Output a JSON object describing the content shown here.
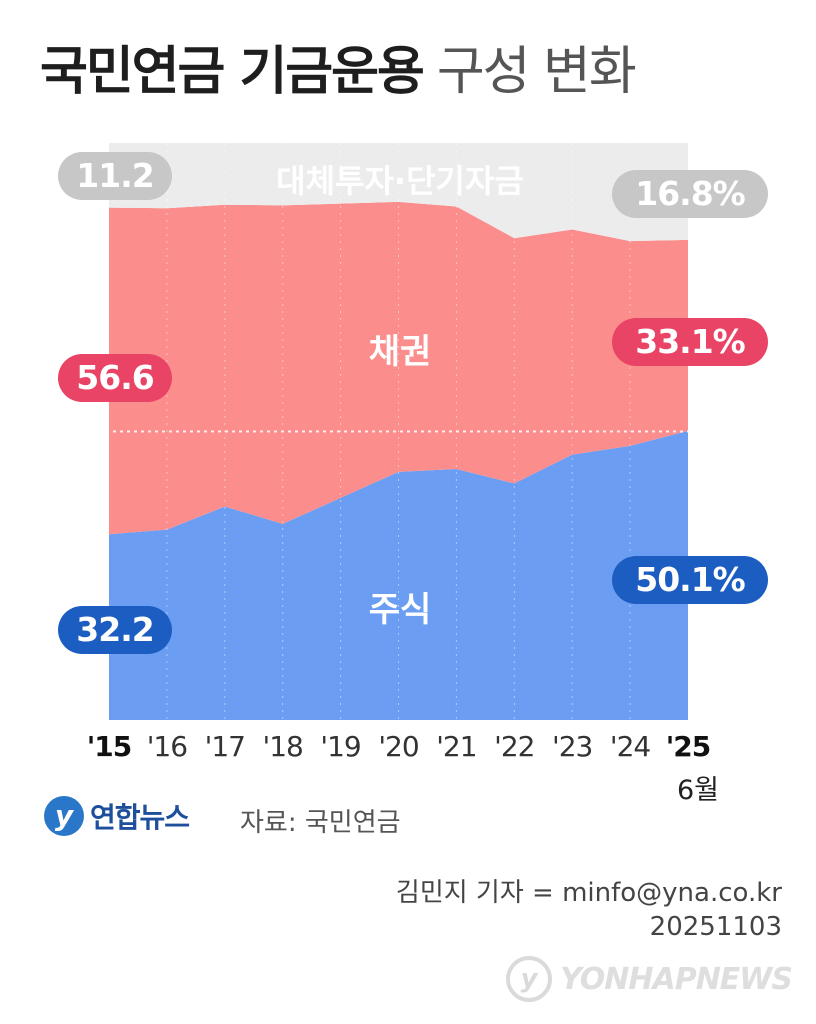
{
  "title_main": "국민연금 기금운용",
  "title_sub": "구성 변화",
  "chart_data": {
    "type": "area",
    "stacked": true,
    "x": [
      "'15",
      "'16",
      "'17",
      "'18",
      "'19",
      "'20",
      "'21",
      "'22",
      "'23",
      "'24",
      "'25"
    ],
    "x_sublabel": "6월",
    "ylim": [
      0,
      100
    ],
    "y_reference": 50,
    "y_reference_label": "50",
    "series": [
      {
        "name": "주식",
        "color": "#6b9ef2",
        "values": [
          32.2,
          33.0,
          37.0,
          34.0,
          38.5,
          43.0,
          43.5,
          41.0,
          46.0,
          47.5,
          50.1
        ]
      },
      {
        "name": "채권",
        "color": "#fb8d8d",
        "values": [
          56.6,
          55.7,
          52.3,
          55.2,
          51.0,
          46.8,
          45.5,
          42.5,
          39.0,
          35.5,
          33.1
        ]
      },
      {
        "name": "대체투자·단기자금",
        "color": "#ececec",
        "values": [
          11.2,
          11.3,
          10.7,
          10.8,
          10.5,
          10.2,
          11.0,
          16.5,
          15.0,
          17.0,
          16.8
        ]
      }
    ],
    "start_labels": [
      "32.2",
      "56.6",
      "11.2"
    ],
    "end_labels": [
      "50.1%",
      "33.1%",
      "16.8%"
    ]
  },
  "logo_text": "연합뉴스",
  "logo_mark": "y",
  "source": "자료: 국민연금",
  "credit_line": "김민지 기자 = minfo@yna.co.kr",
  "date": "20251103",
  "watermark": "YONHAPNEWS"
}
